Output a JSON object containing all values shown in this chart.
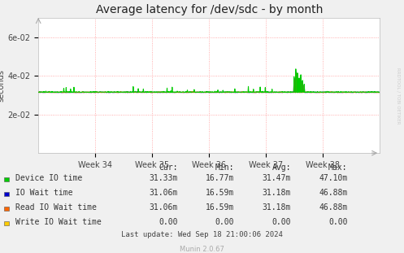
{
  "title": "Average latency for /dev/sdc - by month",
  "ylabel": "seconds",
  "background_color": "#f0f0f0",
  "plot_bg_color": "#ffffff",
  "grid_color": "#ff9999",
  "x_ticks": [
    168,
    336,
    504,
    672,
    840
  ],
  "x_tick_labels": [
    "Week 34",
    "Week 35",
    "Week 36",
    "Week 37",
    "Week 38"
  ],
  "x_min": 0,
  "x_max": 1008,
  "y_min": 0,
  "y_max": 0.07,
  "y_ticks": [
    0.02,
    0.04,
    0.06
  ],
  "y_tick_labels": [
    "2e-02",
    "4e-02",
    "6e-02"
  ],
  "baseline_value": 0.0314,
  "device_io_color": "#00cc00",
  "io_wait_color": "#0000cc",
  "read_io_wait_color": "#ff6600",
  "write_io_wait_color": "#ffcc00",
  "legend_items": [
    {
      "label": "Device IO time",
      "color": "#00cc00"
    },
    {
      "label": "IO Wait time",
      "color": "#0000cc"
    },
    {
      "label": "Read IO Wait time",
      "color": "#ff6600"
    },
    {
      "label": "Write IO Wait time",
      "color": "#ffcc00"
    }
  ],
  "table_rows": [
    [
      "Device IO time",
      "31.33m",
      "16.77m",
      "31.47m",
      "47.10m"
    ],
    [
      "IO Wait time",
      "31.06m",
      "16.59m",
      "31.18m",
      "46.88m"
    ],
    [
      "Read IO Wait time",
      "31.06m",
      "16.59m",
      "31.18m",
      "46.88m"
    ],
    [
      "Write IO Wait time",
      "0.00",
      "0.00",
      "0.00",
      "0.00"
    ]
  ],
  "last_update": "Last update: Wed Sep 18 21:00:06 2024",
  "munin_version": "Munin 2.0.67",
  "rrdtool_text": "RRDTOOL / TOBI OETIKER",
  "title_fontsize": 10,
  "axis_fontsize": 7,
  "legend_fontsize": 7,
  "table_fontsize": 7
}
